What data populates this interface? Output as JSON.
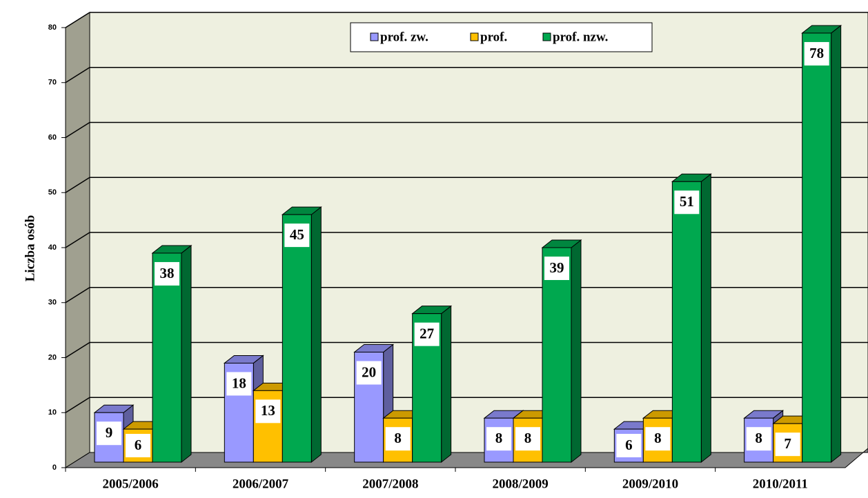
{
  "chart_data": {
    "type": "bar3d",
    "y_axis_label": "Liczba osób",
    "categories": [
      "2005/2006",
      "2006/2007",
      "2007/2008",
      "2008/2009",
      "2009/2010",
      "2010/2011"
    ],
    "series": [
      {
        "name": "prof. zw.",
        "color": "#9999ff",
        "values": [
          9,
          18,
          20,
          8,
          6,
          8
        ]
      },
      {
        "name": "prof.",
        "color": "#ffc000",
        "values": [
          6,
          13,
          8,
          8,
          8,
          7
        ]
      },
      {
        "name": "prof. nzw.",
        "color": "#00a84f",
        "values": [
          38,
          45,
          27,
          39,
          51,
          78
        ]
      }
    ],
    "ylim": [
      0,
      80
    ],
    "yticks": [
      0,
      10,
      20,
      30,
      40,
      50,
      60,
      70,
      80
    ],
    "grid": true
  }
}
